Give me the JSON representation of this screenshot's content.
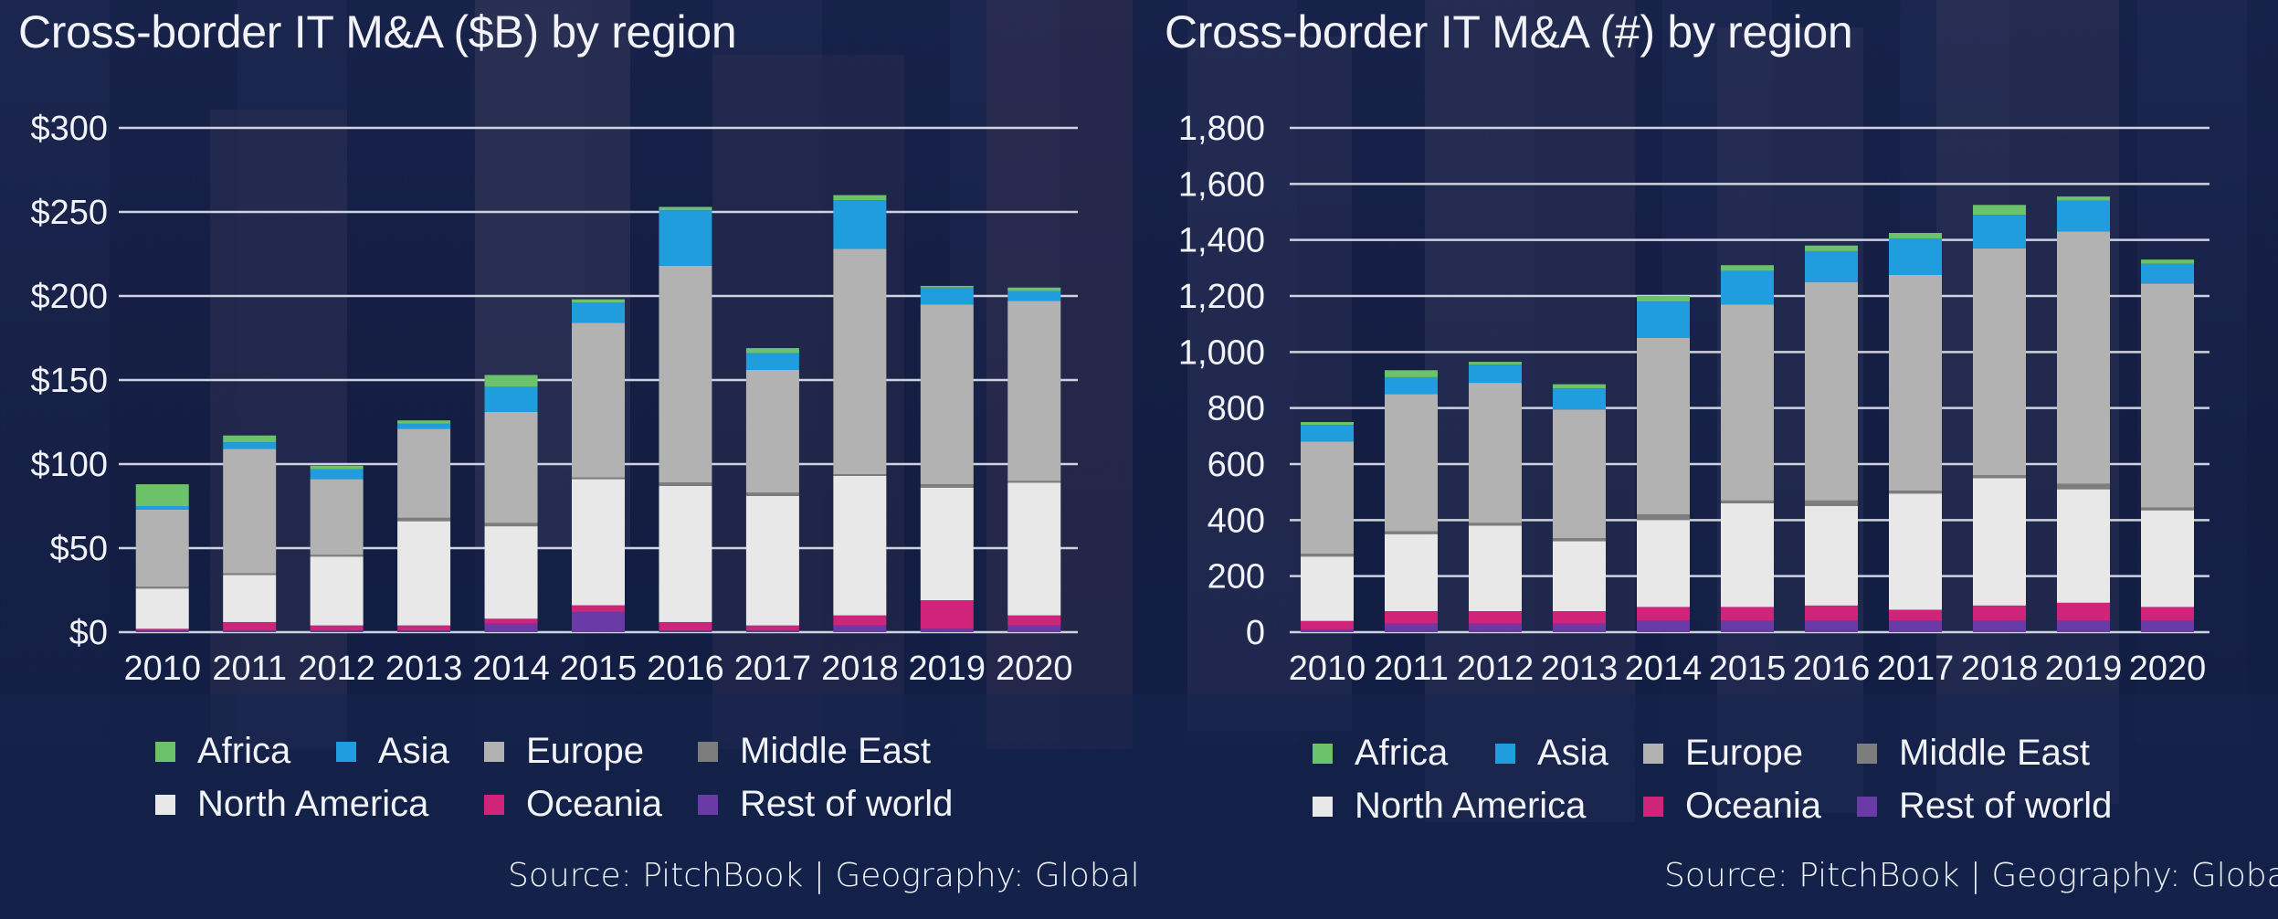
{
  "colors": {
    "Africa": "#6cc26a",
    "Asia": "#1f9ddc",
    "Europe": "#b2b2b2",
    "Middle East": "#7d7d7d",
    "North America": "#e8e8e8",
    "Oceania": "#d0247a",
    "Rest of world": "#6a3aa6",
    "grid": "#cfd3de"
  },
  "chart_data": [
    {
      "type": "bar",
      "stacked": true,
      "title": "Cross-border IT M&A ($B) by region",
      "source": "Source: PitchBook | Geography: Global",
      "categories": [
        "2010",
        "2011",
        "2012",
        "2013",
        "2014",
        "2015",
        "2016",
        "2017",
        "2018",
        "2019",
        "2020"
      ],
      "ylim": [
        0,
        300
      ],
      "yticks": [
        0,
        50,
        100,
        150,
        200,
        250,
        300
      ],
      "ytick_labels": [
        "$0",
        "$50",
        "$100",
        "$150",
        "$200",
        "$250",
        "$300"
      ],
      "grid": true,
      "legend_position": "bottom",
      "series": [
        {
          "name": "Rest of world",
          "values": [
            1,
            1,
            1,
            1,
            5,
            12,
            1,
            1,
            4,
            2,
            4
          ]
        },
        {
          "name": "Oceania",
          "values": [
            1,
            5,
            3,
            3,
            3,
            4,
            5,
            3,
            6,
            17,
            6
          ]
        },
        {
          "name": "North America",
          "values": [
            24,
            28,
            41,
            62,
            55,
            75,
            81,
            77,
            83,
            67,
            79
          ]
        },
        {
          "name": "Middle East",
          "values": [
            1,
            1,
            1,
            2,
            2,
            1,
            2,
            2,
            1,
            2,
            1
          ]
        },
        {
          "name": "Europe",
          "values": [
            46,
            74,
            45,
            53,
            66,
            92,
            129,
            73,
            134,
            107,
            107
          ]
        },
        {
          "name": "Asia",
          "values": [
            2,
            4,
            6,
            3,
            15,
            12,
            33,
            10,
            29,
            10,
            6
          ]
        },
        {
          "name": "Africa",
          "values": [
            13,
            4,
            2,
            2,
            7,
            2,
            2,
            3,
            3,
            1,
            2
          ]
        }
      ]
    },
    {
      "type": "bar",
      "stacked": true,
      "title": "Cross-border IT M&A (#) by region",
      "source": "Source: PitchBook | Geography: Global",
      "categories": [
        "2010",
        "2011",
        "2012",
        "2013",
        "2014",
        "2015",
        "2016",
        "2017",
        "2018",
        "2019",
        "2020"
      ],
      "ylim": [
        0,
        1800
      ],
      "yticks": [
        0,
        200,
        400,
        600,
        800,
        1000,
        1200,
        1400,
        1600,
        1800
      ],
      "ytick_labels": [
        "0",
        "200",
        "400",
        "600",
        "800",
        "1,000",
        "1,200",
        "1,400",
        "1,600",
        "1,800"
      ],
      "grid": true,
      "legend_position": "bottom",
      "series": [
        {
          "name": "Rest of world",
          "values": [
            10,
            30,
            30,
            30,
            40,
            40,
            40,
            40,
            40,
            40,
            40
          ]
        },
        {
          "name": "Oceania",
          "values": [
            30,
            45,
            45,
            45,
            50,
            50,
            55,
            40,
            55,
            65,
            50
          ]
        },
        {
          "name": "North America",
          "values": [
            230,
            275,
            305,
            250,
            310,
            370,
            355,
            415,
            455,
            405,
            345
          ]
        },
        {
          "name": "Middle East",
          "values": [
            10,
            10,
            10,
            10,
            20,
            10,
            20,
            10,
            10,
            20,
            10
          ]
        },
        {
          "name": "Europe",
          "values": [
            400,
            490,
            500,
            460,
            630,
            700,
            780,
            770,
            810,
            900,
            800
          ]
        },
        {
          "name": "Asia",
          "values": [
            60,
            60,
            65,
            75,
            130,
            120,
            110,
            130,
            120,
            110,
            70
          ]
        },
        {
          "name": "Africa",
          "values": [
            10,
            25,
            10,
            15,
            20,
            20,
            20,
            20,
            35,
            15,
            15
          ]
        }
      ]
    }
  ],
  "legend_order": [
    "Africa",
    "Asia",
    "Europe",
    "Middle East",
    "North America",
    "Oceania",
    "Rest of world"
  ],
  "left_panel": {
    "title": "Cross-border IT M&A ($B) by region",
    "source": "Source: PitchBook | Geography: Global",
    "legend": {
      "africa": "Africa",
      "asia": "Asia",
      "europe": "Europe",
      "middle_east": "Middle East",
      "north_america": "North America",
      "oceania": "Oceania",
      "rest_of_world": "Rest of world"
    }
  },
  "right_panel": {
    "title": "Cross-border IT M&A (#) by region",
    "source": "Source: PitchBook | Geography: Global",
    "legend": {
      "africa": "Africa",
      "asia": "Asia",
      "europe": "Europe",
      "middle_east": "Middle East",
      "north_america": "North America",
      "oceania": "Oceania",
      "rest_of_world": "Rest of world"
    }
  }
}
